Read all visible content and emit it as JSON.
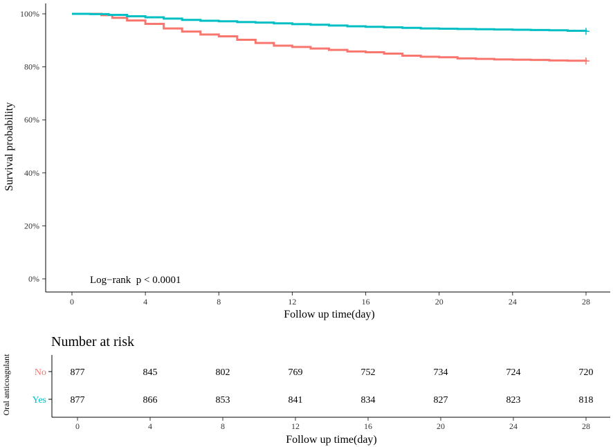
{
  "chart_data": {
    "type": "line",
    "subtype": "kaplan-meier",
    "ylabel": "Survival probability",
    "xlabel": "Follow up time(day)",
    "xlim": [
      0,
      28
    ],
    "ylim": [
      0,
      1
    ],
    "x_ticks": [
      "0",
      "4",
      "8",
      "12",
      "16",
      "20",
      "24",
      "28"
    ],
    "y_ticks": [
      "0%",
      "20%",
      "40%",
      "60%",
      "80%",
      "100%"
    ],
    "annotation": "Log−rank  p < 0.0001",
    "grid": false,
    "series": [
      {
        "name": "No",
        "color": "#F8766D",
        "censor_mark": "+",
        "points": [
          [
            0,
            1.0
          ],
          [
            1.6,
            0.995
          ],
          [
            2.2,
            0.985
          ],
          [
            3.0,
            0.975
          ],
          [
            4.0,
            0.962
          ],
          [
            5.0,
            0.945
          ],
          [
            6.0,
            0.933
          ],
          [
            7.0,
            0.922
          ],
          [
            8.0,
            0.915
          ],
          [
            9.0,
            0.902
          ],
          [
            10.0,
            0.89
          ],
          [
            11.0,
            0.88
          ],
          [
            12.0,
            0.875
          ],
          [
            13.0,
            0.869
          ],
          [
            14.0,
            0.864
          ],
          [
            15.0,
            0.858
          ],
          [
            16.0,
            0.855
          ],
          [
            17.0,
            0.85
          ],
          [
            18.0,
            0.842
          ],
          [
            19.0,
            0.838
          ],
          [
            20.0,
            0.836
          ],
          [
            21.0,
            0.832
          ],
          [
            22.0,
            0.83
          ],
          [
            23.0,
            0.828
          ],
          [
            24.0,
            0.827
          ],
          [
            25.0,
            0.826
          ],
          [
            26.0,
            0.824
          ],
          [
            27.0,
            0.823
          ],
          [
            28.0,
            0.822
          ]
        ]
      },
      {
        "name": "Yes",
        "color": "#00BFC4",
        "censor_mark": "+",
        "points": [
          [
            0,
            1.0
          ],
          [
            1.0,
            0.999
          ],
          [
            2.0,
            0.996
          ],
          [
            3.0,
            0.991
          ],
          [
            4.0,
            0.987
          ],
          [
            5.0,
            0.982
          ],
          [
            6.0,
            0.977
          ],
          [
            7.0,
            0.974
          ],
          [
            8.0,
            0.972
          ],
          [
            9.0,
            0.969
          ],
          [
            10.0,
            0.967
          ],
          [
            11.0,
            0.964
          ],
          [
            12.0,
            0.961
          ],
          [
            13.0,
            0.959
          ],
          [
            14.0,
            0.956
          ],
          [
            15.0,
            0.953
          ],
          [
            16.0,
            0.951
          ],
          [
            17.0,
            0.949
          ],
          [
            18.0,
            0.947
          ],
          [
            19.0,
            0.945
          ],
          [
            20.0,
            0.944
          ],
          [
            21.0,
            0.943
          ],
          [
            22.0,
            0.942
          ],
          [
            23.0,
            0.941
          ],
          [
            24.0,
            0.94
          ],
          [
            25.0,
            0.939
          ],
          [
            26.0,
            0.938
          ],
          [
            27.0,
            0.936
          ],
          [
            28.0,
            0.934
          ]
        ]
      }
    ],
    "risk_table": {
      "title": "Number at risk",
      "ylabel": "Oral anticoagulant",
      "xlabel": "Follow up time(day)",
      "times": [
        "0",
        "4",
        "8",
        "12",
        "16",
        "20",
        "24",
        "28"
      ],
      "rows": [
        {
          "name": "No",
          "color": "#F8766D",
          "values": [
            "877",
            "845",
            "802",
            "769",
            "752",
            "734",
            "724",
            "720"
          ]
        },
        {
          "name": "Yes",
          "color": "#00BFC4",
          "values": [
            "877",
            "866",
            "853",
            "841",
            "834",
            "827",
            "823",
            "818"
          ]
        }
      ]
    }
  }
}
